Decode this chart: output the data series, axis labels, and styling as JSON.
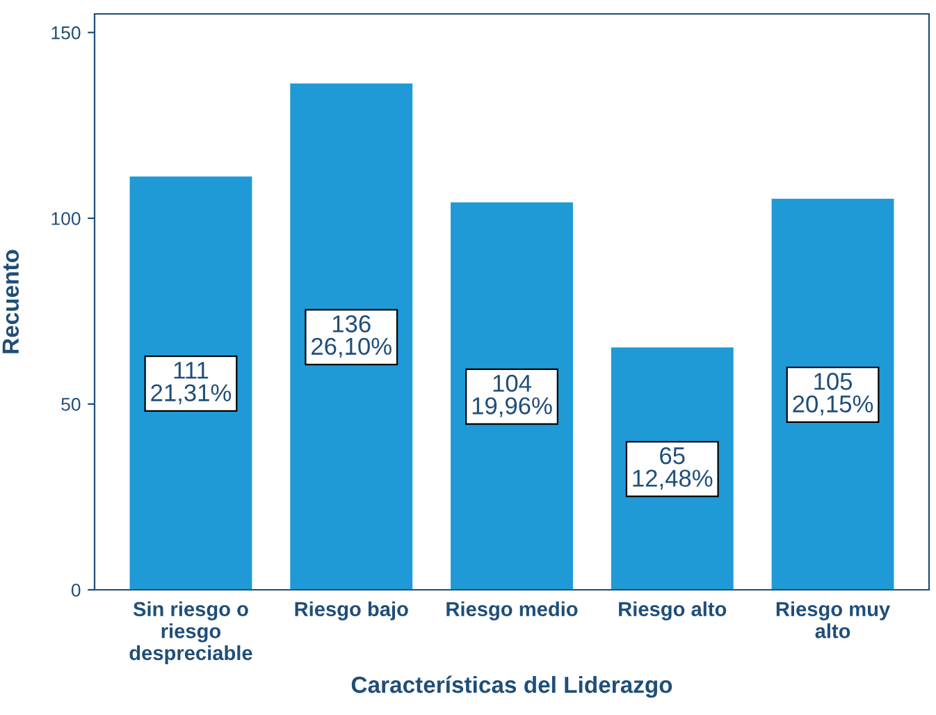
{
  "chart_data": {
    "type": "bar",
    "xlabel": "Características del Liderazgo",
    "ylabel": "Recuento",
    "categories": [
      "Sin riesgo o\nriesgo\ndespreciable",
      "Riesgo bajo",
      "Riesgo medio",
      "Riesgo alto",
      "Riesgo muy\nalto"
    ],
    "values": [
      111,
      136,
      104,
      65,
      105
    ],
    "value_labels": [
      "111\n21,31%",
      "136\n26,10%",
      "104\n19,96%",
      "65\n12,48%",
      "105\n20,15%"
    ],
    "color": "#1f9ad6",
    "ylim": [
      0,
      155
    ],
    "yticks": [
      0,
      50,
      100,
      150
    ],
    "grid": false
  }
}
